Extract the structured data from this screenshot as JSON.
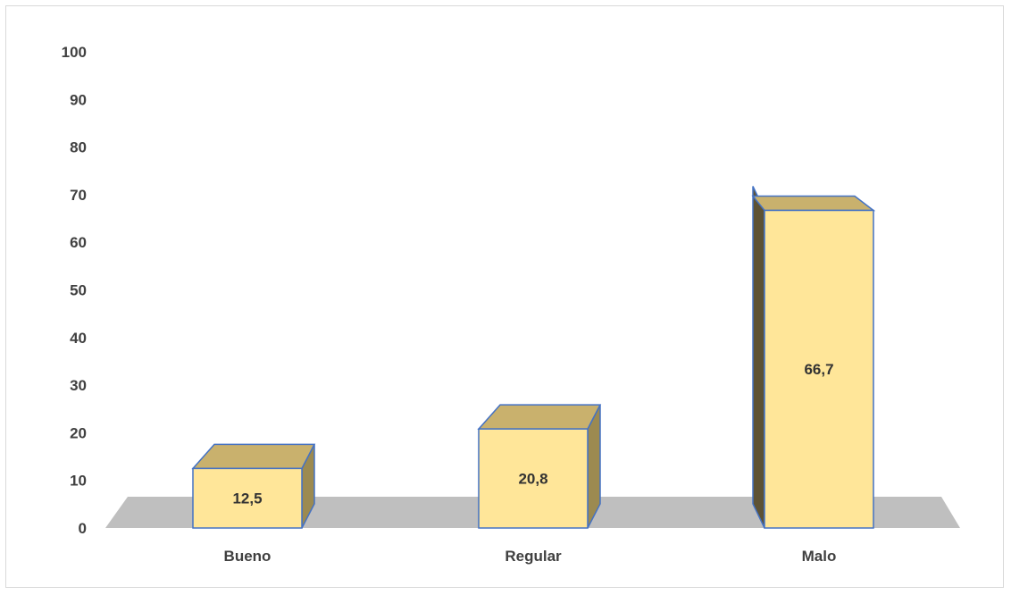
{
  "chart_data": {
    "type": "bar",
    "style": "3d-column",
    "categories": [
      "Bueno",
      "Regular",
      "Malo"
    ],
    "values": [
      12.5,
      20.8,
      66.7
    ],
    "value_labels": [
      "12,5",
      "20,8",
      "66,7"
    ],
    "title": "",
    "xlabel": "",
    "ylabel": "",
    "ylim": [
      0,
      100
    ],
    "yticks": [
      0,
      10,
      20,
      30,
      40,
      50,
      60,
      70,
      80,
      90,
      100
    ],
    "ytick_labels": [
      "0",
      "10",
      "20",
      "30",
      "40",
      "50",
      "60",
      "70",
      "80",
      "90",
      "100"
    ],
    "grid": false,
    "legend": "none",
    "colors": {
      "bar_front": "#FFE699",
      "bar_top": "#C9B16D",
      "bar_side": "#9C8A50",
      "bar_side_dark": "#5E5234",
      "bar_outline": "#4472C4",
      "floor": "#BFBFBF",
      "text": "#404040",
      "frame": "#D9D9D9"
    }
  }
}
